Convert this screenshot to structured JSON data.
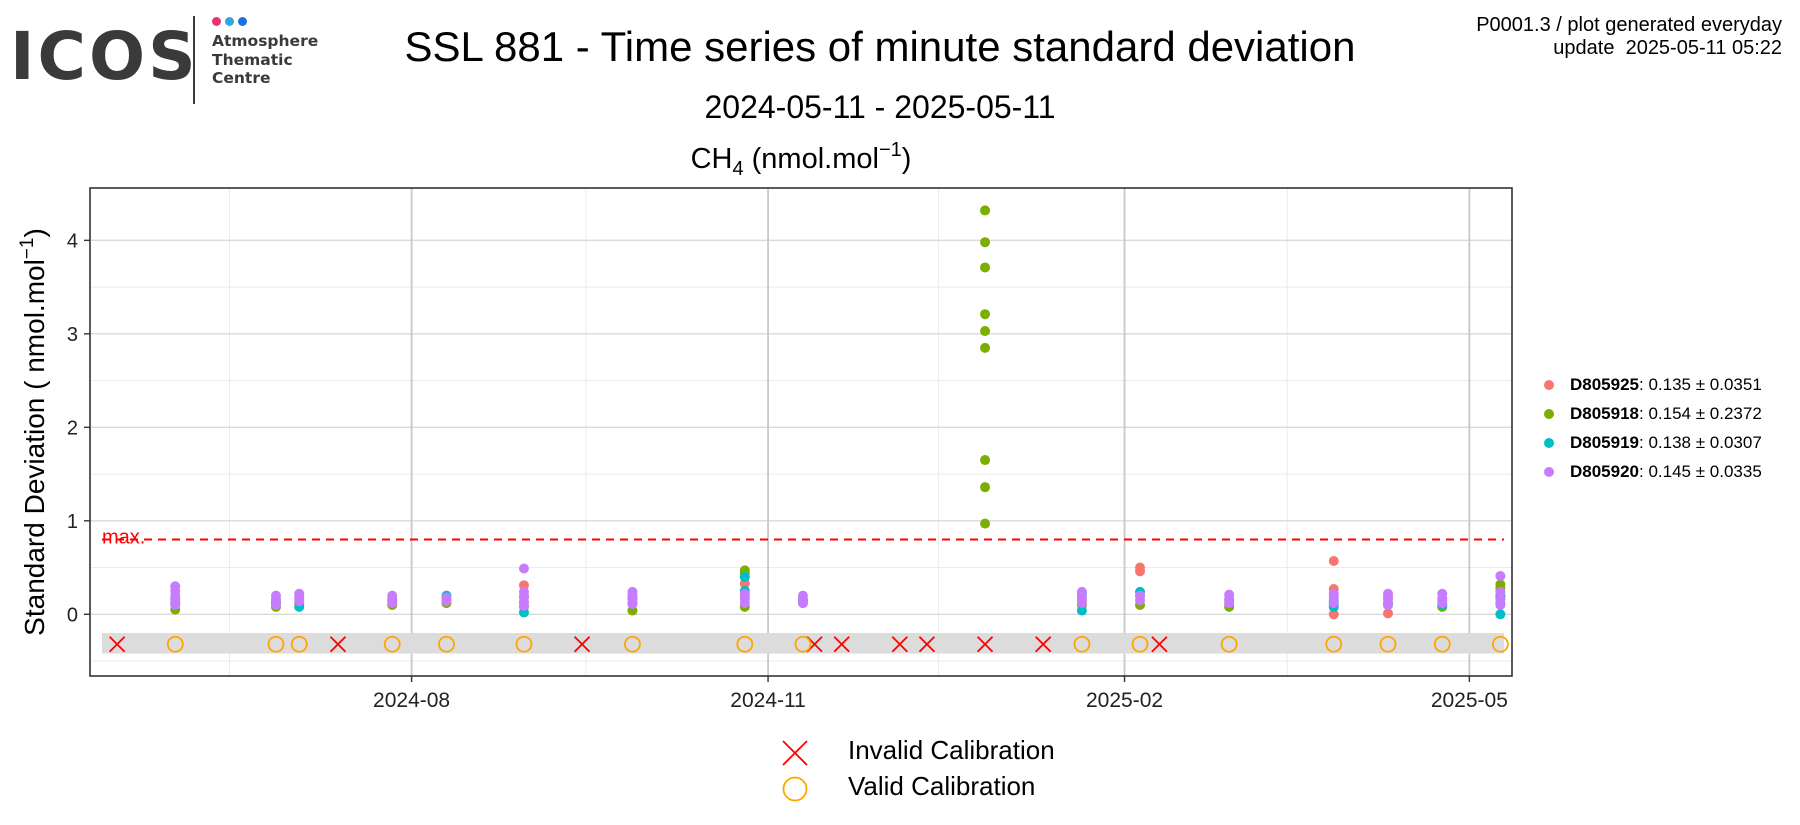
{
  "logo": {
    "word": "ICOS",
    "lines": [
      "Atmosphere",
      "Thematic",
      "Centre"
    ],
    "dot_colors": [
      "#e8336d",
      "#2fa8e0",
      "#1f6fe0"
    ]
  },
  "header": {
    "title": "SSL 881 - Time series of minute standard deviation",
    "subtitle": "2024-05-11 - 2025-05-11",
    "meta_line1": "P0001.3 / plot generated everyday",
    "meta_line2": "update  2025-05-11 05:22"
  },
  "chart_data": {
    "type": "scatter",
    "title": "CH4 (nmol.mol-1)",
    "title_parts": {
      "base": "CH",
      "sub": "4",
      "mid": " (nmol.mol",
      "sup": "−1",
      "end": ")"
    },
    "ylabel_parts": {
      "base": "Standard Deviation ( nmol.mol",
      "sup": "−1",
      "end": ")"
    },
    "xlim": [
      "2024-05-10",
      "2025-05-12"
    ],
    "ylim": [
      -0.66,
      4.56
    ],
    "x_ticks": [
      {
        "date": "2024-08-01",
        "label": "2024-08"
      },
      {
        "date": "2024-11-01",
        "label": "2024-11"
      },
      {
        "date": "2025-02-01",
        "label": "2025-02"
      },
      {
        "date": "2025-05-01",
        "label": "2025-05"
      }
    ],
    "x_minor_ticks": [
      "2024-06-15",
      "2024-09-15",
      "2024-12-15",
      "2025-03-15"
    ],
    "y_ticks": [
      0,
      1,
      2,
      3,
      4
    ],
    "y_minor_ticks": [
      -0.5,
      0.5,
      1.5,
      2.5,
      3.5
    ],
    "grid": true,
    "max_line": {
      "y": 0.8,
      "label": "max.",
      "color": "#ff0000"
    },
    "calibration_band": {
      "ymin": -0.42,
      "ymax": -0.2,
      "marker_y": -0.32,
      "color": "#dcdcdc"
    },
    "invalid_calibrations": [
      "2024-05-17",
      "2024-07-13",
      "2024-09-14",
      "2024-11-13",
      "2024-11-20",
      "2024-12-05",
      "2024-12-12",
      "2024-12-27",
      "2025-01-11",
      "2025-02-10"
    ],
    "valid_calibrations": [
      "2024-06-01",
      "2024-06-27",
      "2024-07-03",
      "2024-07-27",
      "2024-08-10",
      "2024-08-30",
      "2024-09-27",
      "2024-10-26",
      "2024-11-10",
      "2025-01-21",
      "2025-02-05",
      "2025-02-28",
      "2025-03-27",
      "2025-04-10",
      "2025-04-24",
      "2025-05-09"
    ],
    "series": [
      {
        "name": "D805925",
        "stat": ": 0.135 ± 0.0351",
        "color": "#f8766d",
        "points": [
          {
            "x": "2024-06-01",
            "y": 0.18
          },
          {
            "x": "2024-06-27",
            "y": 0.13
          },
          {
            "x": "2024-07-03",
            "y": 0.16
          },
          {
            "x": "2024-07-27",
            "y": 0.14
          },
          {
            "x": "2024-08-10",
            "y": 0.15
          },
          {
            "x": "2024-08-30",
            "y": 0.31
          },
          {
            "x": "2024-08-30",
            "y": 0.2
          },
          {
            "x": "2024-09-27",
            "y": 0.17
          },
          {
            "x": "2024-10-26",
            "y": 0.33
          },
          {
            "x": "2024-10-26",
            "y": 0.2
          },
          {
            "x": "2024-11-10",
            "y": 0.15
          },
          {
            "x": "2025-01-21",
            "y": 0.15
          },
          {
            "x": "2025-02-05",
            "y": 0.5
          },
          {
            "x": "2025-02-05",
            "y": 0.46
          },
          {
            "x": "2025-02-05",
            "y": 0.2
          },
          {
            "x": "2025-02-28",
            "y": 0.15
          },
          {
            "x": "2025-03-27",
            "y": 0.57
          },
          {
            "x": "2025-03-27",
            "y": 0.27
          },
          {
            "x": "2025-03-27",
            "y": 0.0
          },
          {
            "x": "2025-04-10",
            "y": 0.01
          },
          {
            "x": "2025-04-10",
            "y": 0.18
          },
          {
            "x": "2025-04-24",
            "y": 0.15
          },
          {
            "x": "2025-05-09",
            "y": 0.18
          }
        ]
      },
      {
        "name": "D805918",
        "stat": ": 0.154 ± 0.2372",
        "color": "#7cae00",
        "points": [
          {
            "x": "2024-06-01",
            "y": 0.05
          },
          {
            "x": "2024-06-01",
            "y": 0.12
          },
          {
            "x": "2024-06-27",
            "y": 0.08
          },
          {
            "x": "2024-07-03",
            "y": 0.12
          },
          {
            "x": "2024-07-27",
            "y": 0.1
          },
          {
            "x": "2024-08-10",
            "y": 0.12
          },
          {
            "x": "2024-08-30",
            "y": 0.08
          },
          {
            "x": "2024-09-27",
            "y": 0.04
          },
          {
            "x": "2024-10-26",
            "y": 0.47
          },
          {
            "x": "2024-10-26",
            "y": 0.44
          },
          {
            "x": "2024-10-26",
            "y": 0.08
          },
          {
            "x": "2024-11-10",
            "y": 0.12
          },
          {
            "x": "2024-12-27",
            "y": 4.32
          },
          {
            "x": "2024-12-27",
            "y": 3.98
          },
          {
            "x": "2024-12-27",
            "y": 3.71
          },
          {
            "x": "2024-12-27",
            "y": 3.21
          },
          {
            "x": "2024-12-27",
            "y": 3.03
          },
          {
            "x": "2024-12-27",
            "y": 2.85
          },
          {
            "x": "2024-12-27",
            "y": 1.65
          },
          {
            "x": "2024-12-27",
            "y": 1.36
          },
          {
            "x": "2024-12-27",
            "y": 0.97
          },
          {
            "x": "2025-01-21",
            "y": 0.1
          },
          {
            "x": "2025-02-05",
            "y": 0.1
          },
          {
            "x": "2025-02-28",
            "y": 0.08
          },
          {
            "x": "2025-03-27",
            "y": 0.1
          },
          {
            "x": "2025-04-10",
            "y": 0.1
          },
          {
            "x": "2025-04-24",
            "y": 0.08
          },
          {
            "x": "2025-05-09",
            "y": 0.32
          },
          {
            "x": "2025-05-09",
            "y": 0.28
          },
          {
            "x": "2025-05-09",
            "y": 0.12
          }
        ]
      },
      {
        "name": "D805919",
        "stat": ": 0.138 ± 0.0307",
        "color": "#00bfc4",
        "points": [
          {
            "x": "2024-06-01",
            "y": 0.12
          },
          {
            "x": "2024-06-27",
            "y": 0.12
          },
          {
            "x": "2024-07-03",
            "y": 0.08
          },
          {
            "x": "2024-07-27",
            "y": 0.15
          },
          {
            "x": "2024-08-10",
            "y": 0.2
          },
          {
            "x": "2024-08-30",
            "y": 0.02
          },
          {
            "x": "2024-08-30",
            "y": 0.13
          },
          {
            "x": "2024-09-27",
            "y": 0.12
          },
          {
            "x": "2024-10-26",
            "y": 0.4
          },
          {
            "x": "2024-10-26",
            "y": 0.25
          },
          {
            "x": "2024-11-10",
            "y": 0.14
          },
          {
            "x": "2025-01-21",
            "y": 0.04
          },
          {
            "x": "2025-01-21",
            "y": 0.22
          },
          {
            "x": "2025-02-05",
            "y": 0.24
          },
          {
            "x": "2025-02-28",
            "y": 0.12
          },
          {
            "x": "2025-03-27",
            "y": 0.08
          },
          {
            "x": "2025-03-27",
            "y": 0.14
          },
          {
            "x": "2025-04-10",
            "y": 0.12
          },
          {
            "x": "2025-04-24",
            "y": 0.1
          },
          {
            "x": "2025-05-09",
            "y": 0.0
          },
          {
            "x": "2025-05-09",
            "y": 0.2
          }
        ]
      },
      {
        "name": "D805920",
        "stat": ": 0.145 ± 0.0335",
        "color": "#c77cff",
        "points": [
          {
            "x": "2024-06-01",
            "y": 0.3
          },
          {
            "x": "2024-06-01",
            "y": 0.25
          },
          {
            "x": "2024-06-01",
            "y": 0.2
          },
          {
            "x": "2024-06-01",
            "y": 0.16
          },
          {
            "x": "2024-06-01",
            "y": 0.1
          },
          {
            "x": "2024-06-27",
            "y": 0.2
          },
          {
            "x": "2024-06-27",
            "y": 0.16
          },
          {
            "x": "2024-06-27",
            "y": 0.1
          },
          {
            "x": "2024-07-03",
            "y": 0.22
          },
          {
            "x": "2024-07-03",
            "y": 0.18
          },
          {
            "x": "2024-07-03",
            "y": 0.14
          },
          {
            "x": "2024-07-27",
            "y": 0.2
          },
          {
            "x": "2024-07-27",
            "y": 0.16
          },
          {
            "x": "2024-07-27",
            "y": 0.12
          },
          {
            "x": "2024-08-10",
            "y": 0.18
          },
          {
            "x": "2024-08-10",
            "y": 0.14
          },
          {
            "x": "2024-08-30",
            "y": 0.49
          },
          {
            "x": "2024-08-30",
            "y": 0.24
          },
          {
            "x": "2024-08-30",
            "y": 0.18
          },
          {
            "x": "2024-08-30",
            "y": 0.13
          },
          {
            "x": "2024-08-30",
            "y": 0.09
          },
          {
            "x": "2024-09-27",
            "y": 0.24
          },
          {
            "x": "2024-09-27",
            "y": 0.2
          },
          {
            "x": "2024-09-27",
            "y": 0.16
          },
          {
            "x": "2024-09-27",
            "y": 0.11
          },
          {
            "x": "2024-10-26",
            "y": 0.22
          },
          {
            "x": "2024-10-26",
            "y": 0.17
          },
          {
            "x": "2024-10-26",
            "y": 0.12
          },
          {
            "x": "2024-11-10",
            "y": 0.2
          },
          {
            "x": "2024-11-10",
            "y": 0.16
          },
          {
            "x": "2024-11-10",
            "y": 0.12
          },
          {
            "x": "2025-01-21",
            "y": 0.24
          },
          {
            "x": "2025-01-21",
            "y": 0.18
          },
          {
            "x": "2025-01-21",
            "y": 0.12
          },
          {
            "x": "2025-02-05",
            "y": 0.2
          },
          {
            "x": "2025-02-05",
            "y": 0.15
          },
          {
            "x": "2025-02-28",
            "y": 0.21
          },
          {
            "x": "2025-02-28",
            "y": 0.16
          },
          {
            "x": "2025-02-28",
            "y": 0.12
          },
          {
            "x": "2025-03-27",
            "y": 0.22
          },
          {
            "x": "2025-03-27",
            "y": 0.18
          },
          {
            "x": "2025-03-27",
            "y": 0.12
          },
          {
            "x": "2025-04-10",
            "y": 0.22
          },
          {
            "x": "2025-04-10",
            "y": 0.16
          },
          {
            "x": "2025-04-10",
            "y": 0.1
          },
          {
            "x": "2025-04-24",
            "y": 0.22
          },
          {
            "x": "2025-04-24",
            "y": 0.17
          },
          {
            "x": "2025-04-24",
            "y": 0.12
          },
          {
            "x": "2025-05-09",
            "y": 0.41
          },
          {
            "x": "2025-05-09",
            "y": 0.24
          },
          {
            "x": "2025-05-09",
            "y": 0.16
          },
          {
            "x": "2025-05-09",
            "y": 0.1
          }
        ]
      }
    ],
    "legend_markers": [
      {
        "label": "Invalid Calibration",
        "symbol": "x",
        "color": "#ff0000"
      },
      {
        "label": "Valid Calibration",
        "symbol": "circle",
        "color": "#ffa500"
      }
    ]
  }
}
